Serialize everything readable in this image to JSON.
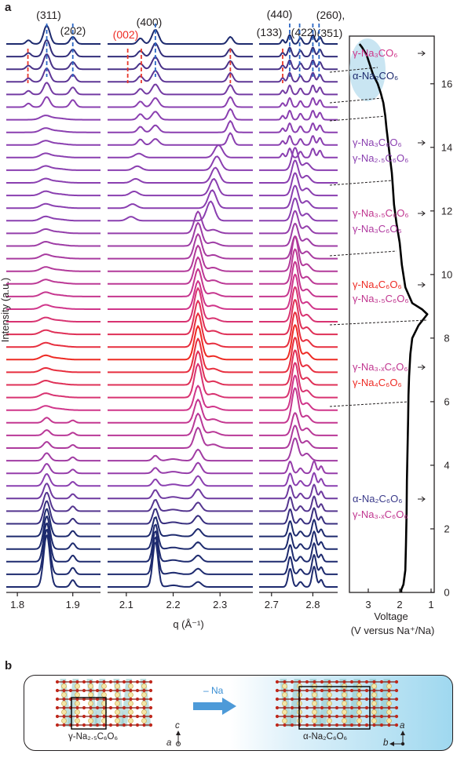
{
  "figure": {
    "panel_a_label": "a",
    "panel_b_label": "b"
  },
  "colors": {
    "navy": "#1d2a6e",
    "purple": "#8a3fb0",
    "magenta": "#d0358a",
    "red": "#ee2b24",
    "peak_red": "#e8392c",
    "peak_blue": "#2a66c4",
    "arrow_blue": "#3a8fd4",
    "bubble": "#bfe0f0"
  },
  "chart_data": [
    {
      "type": "line",
      "description_of_axes": "stacked in-situ XRD patterns",
      "ylabel": "Intensity (a.u.)",
      "xlabel": "q (Å⁻¹)",
      "n_patterns": 44,
      "windows": [
        {
          "xlim": [
            1.78,
            1.95
          ],
          "ticks": [
            "1.8",
            "1.9"
          ],
          "tick_values": [
            1.8,
            1.9
          ]
        },
        {
          "xlim": [
            2.06,
            2.37
          ],
          "ticks": [
            "2.1",
            "2.2",
            "2.3"
          ],
          "tick_values": [
            2.1,
            2.2,
            2.3
          ]
        },
        {
          "xlim": [
            2.67,
            2.86
          ],
          "ticks": [
            "2.7",
            "2.8"
          ],
          "tick_values": [
            2.7,
            2.8
          ]
        }
      ],
      "peak_labels": [
        {
          "text": "(311)",
          "q": 1.853,
          "color": "#231f20"
        },
        {
          "text": "(202)",
          "q": 1.9,
          "color": "#231f20"
        },
        {
          "text": "(400)",
          "q": 2.162,
          "color": "#231f20"
        },
        {
          "text": "(002)",
          "q": 2.115,
          "color": "#ee2b24"
        },
        {
          "text": "(440)",
          "q": 2.757,
          "color": "#231f20"
        },
        {
          "text": "(133)",
          "q": 2.738,
          "color": "#231f20"
        },
        {
          "text": "(422)",
          "q": 2.792,
          "color": "#231f20"
        },
        {
          "text": "(260),",
          "q": 2.825,
          "color": "#231f20"
        },
        {
          "text": "(351)",
          "q": 2.825,
          "color": "#231f20"
        }
      ],
      "peak_markers": [
        {
          "q": 1.853,
          "color": "#2a66c4"
        },
        {
          "q": 1.9,
          "color": "#2a66c4"
        },
        {
          "q": 1.819,
          "color": "#e8392c"
        },
        {
          "q": 2.162,
          "color": "#2a66c4"
        },
        {
          "q": 2.103,
          "color": "#e8392c"
        },
        {
          "q": 2.132,
          "color": "#e8392c"
        },
        {
          "q": 2.322,
          "color": "#e8392c"
        },
        {
          "q": 2.744,
          "color": "#2a66c4"
        },
        {
          "q": 2.768,
          "color": "#2a66c4"
        },
        {
          "q": 2.8,
          "color": "#2a66c4"
        },
        {
          "q": 2.815,
          "color": "#2a66c4"
        },
        {
          "q": 2.727,
          "color": "#e8392c"
        }
      ]
    },
    {
      "type": "line",
      "xlabel": "Voltage",
      "xlabel2": "(V versus Na⁺/Na)",
      "xlim": [
        3.6,
        0.9
      ],
      "x_ticks": [
        "3",
        "2",
        "1"
      ],
      "x_tick_values": [
        3,
        2,
        1
      ],
      "ylim": [
        0,
        17.5
      ],
      "y_ticks": [
        "0",
        "2",
        "4",
        "6",
        "8",
        "10",
        "12",
        "14",
        "16"
      ],
      "y_tick_values": [
        0,
        2,
        4,
        6,
        8,
        10,
        12,
        14,
        16
      ],
      "series": [
        {
          "points": [
            [
              1.95,
              0.0
            ],
            [
              1.95,
              0.08
            ],
            [
              1.88,
              0.25
            ],
            [
              1.82,
              0.7
            ],
            [
              1.8,
              1.5
            ],
            [
              1.78,
              2.5
            ],
            [
              1.77,
              3.5
            ],
            [
              1.75,
              4.5
            ],
            [
              1.73,
              5.5
            ],
            [
              1.72,
              6.2
            ],
            [
              1.7,
              6.8
            ],
            [
              1.66,
              7.5
            ],
            [
              1.6,
              8.0
            ],
            [
              1.4,
              8.4
            ],
            [
              1.12,
              8.75
            ],
            [
              1.28,
              8.9
            ],
            [
              1.6,
              9.1
            ],
            [
              1.82,
              9.6
            ],
            [
              1.93,
              10.3
            ],
            [
              2.0,
              11.0
            ],
            [
              2.1,
              11.6
            ],
            [
              2.18,
              12.2
            ],
            [
              2.22,
              12.8
            ],
            [
              2.25,
              13.2
            ],
            [
              2.3,
              13.6
            ],
            [
              2.36,
              14.1
            ],
            [
              2.42,
              14.6
            ],
            [
              2.46,
              15.0
            ],
            [
              2.52,
              15.4
            ],
            [
              2.6,
              15.7
            ],
            [
              2.7,
              16.0
            ],
            [
              2.85,
              16.3
            ],
            [
              2.95,
              16.6
            ],
            [
              3.05,
              16.9
            ],
            [
              3.2,
              17.15
            ],
            [
              3.28,
              17.25
            ]
          ]
        }
      ]
    }
  ],
  "phase_labels": [
    {
      "lines": [
        "γ-Na₃CO₆",
        "α-Na₂CO₆"
      ],
      "colors": [
        "#d0358a",
        "#1d2a6e"
      ]
    },
    {
      "lines": [
        "γ-Na₃C₆O₆",
        "γ-Na₂.₅C₆O₆"
      ],
      "colors": [
        "#8a3fb0",
        "#8a3fb0"
      ]
    },
    {
      "lines": [
        "γ-Na₃.₅C₆O₆",
        "γ-Na₃C₆O₆"
      ],
      "colors": [
        "#c0358f",
        "#b03aa0"
      ]
    },
    {
      "lines": [
        "γ-Na₄C₆O₆",
        "γ-Na₃.₅C₆O₆"
      ],
      "colors": [
        "#ee2b24",
        "#c0358f"
      ]
    },
    {
      "lines": [
        "γ-Na₃.ₓC₆O₆",
        "γ-Na₄C₆O₆"
      ],
      "colors": [
        "#c0358f",
        "#ee2b24"
      ]
    },
    {
      "lines": [
        "α-Na₂C₆O₆",
        "γ-Na₃.ₓC₆O₆"
      ],
      "colors": [
        "#3a3a8a",
        "#c0358f"
      ]
    }
  ],
  "panel_b": {
    "arrow_label": "– Na",
    "left_caption": "γ-Na₂.₅C₆O₆",
    "right_caption": "α-Na₂C₆O₆",
    "left_axes": {
      "horiz": "a",
      "vert": "c"
    },
    "right_axes": {
      "horiz": "b",
      "vert": "a"
    }
  }
}
